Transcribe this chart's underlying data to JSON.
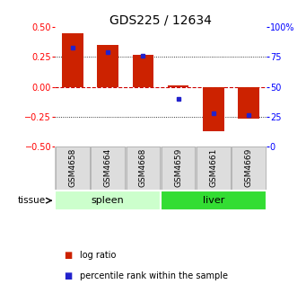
{
  "title": "GDS225 / 12634",
  "samples": [
    "GSM4658",
    "GSM4664",
    "GSM4668",
    "GSM4659",
    "GSM4661",
    "GSM4669"
  ],
  "log_ratio": [
    0.45,
    0.35,
    0.27,
    0.01,
    -0.37,
    -0.27
  ],
  "percentile": [
    83,
    79,
    76,
    40,
    28,
    26
  ],
  "ylim_left": [
    -0.5,
    0.5
  ],
  "ylim_right": [
    0,
    100
  ],
  "yticks_left": [
    -0.5,
    -0.25,
    0,
    0.25,
    0.5
  ],
  "yticks_right": [
    0,
    25,
    50,
    75,
    100
  ],
  "yticklabels_right": [
    "0",
    "25",
    "50",
    "75",
    "100%"
  ],
  "groups": [
    {
      "label": "spleen",
      "start": 0,
      "end": 3,
      "color": "#ccffcc"
    },
    {
      "label": "liver",
      "start": 3,
      "end": 6,
      "color": "#33dd33"
    }
  ],
  "bar_color": "#cc2200",
  "dot_color": "#2222cc",
  "bar_width": 0.6,
  "title_fontsize": 10,
  "tick_fontsize": 7,
  "sample_fontsize": 6.5,
  "group_label_fontsize": 8,
  "legend_fontsize": 7,
  "legend_items": [
    "log ratio",
    "percentile rank within the sample"
  ],
  "background_color": "#ffffff"
}
